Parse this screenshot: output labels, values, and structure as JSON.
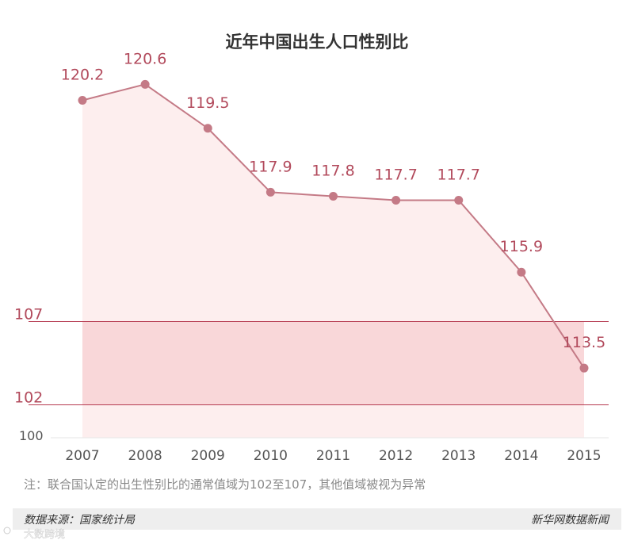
{
  "chart_data": {
    "type": "line",
    "title": "近年中国出生人口性别比",
    "x": [
      "2007",
      "2008",
      "2009",
      "2010",
      "2011",
      "2012",
      "2013",
      "2014",
      "2015"
    ],
    "values": [
      120.2,
      120.6,
      119.5,
      117.9,
      117.8,
      117.7,
      117.7,
      115.9,
      113.5
    ],
    "value_labels": [
      "120.2",
      "120.6",
      "119.5",
      "117.9",
      "117.8",
      "117.7",
      "117.7",
      "115.9",
      "113.5"
    ],
    "y_base_label": "100",
    "ref_lines": [
      {
        "value": 107,
        "label": "107"
      },
      {
        "value": 102,
        "label": "102"
      }
    ],
    "normal_range": [
      102,
      107
    ],
    "colors": {
      "line": "#c47a86",
      "marker": "#c47a86",
      "area": "#fdeeee",
      "band": "#f9d7d9",
      "ref_line": "#b53a50",
      "label": "#b24a5c",
      "footer_bg": "#eeeeee"
    }
  },
  "note": "注：联合国认定的出生性别比的通常值域为102至107，其他值域被视为异常",
  "footer": {
    "source": "数据来源：国家统计局",
    "publisher": "新华网数据新闻"
  },
  "watermark": "大数跨境"
}
